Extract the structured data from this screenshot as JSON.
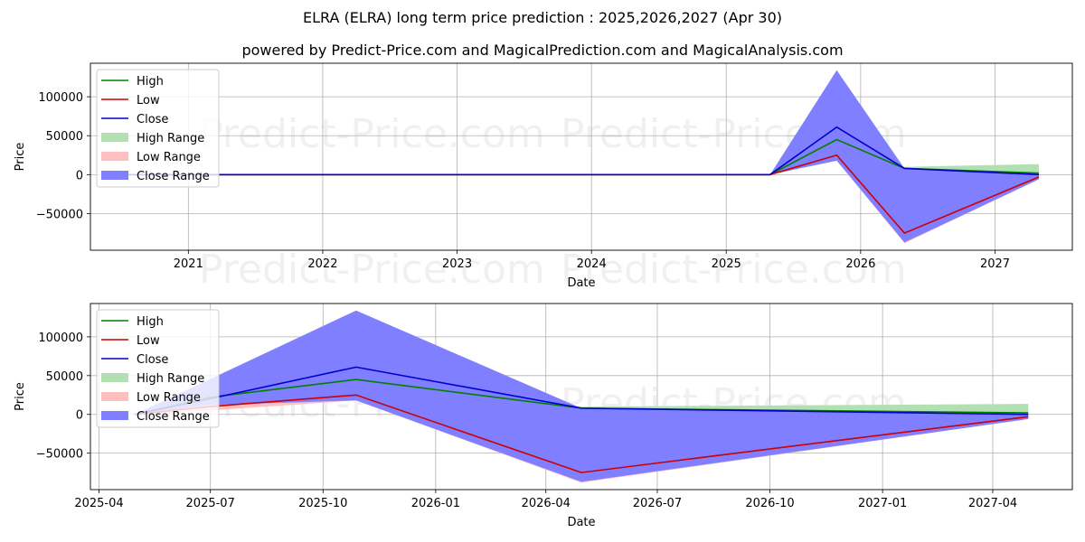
{
  "title": "ELRA (ELRA) long term price prediction : 2025,2026,2027 (Apr 30)",
  "subtitle": "powered by Predict-Price.com and MagicalPrediction.com and MagicalAnalysis.com",
  "watermark": "Predict-Price.com",
  "colors": {
    "high": "#008000",
    "low": "#cc0000",
    "close": "#0000cc",
    "high_range": "#b3e0b3",
    "low_range": "#ffbfbf",
    "close_range": "#7f7fff",
    "grid": "#b0b0b0"
  },
  "chart_data": [
    {
      "type": "area",
      "xlabel": "Date",
      "ylabel": "Price",
      "x_axis": "date",
      "xlim": [
        "2020-04-10",
        "2027-07-30"
      ],
      "ylim": [
        -97000,
        143000
      ],
      "x_ticks": [
        {
          "date": "2021-01-01",
          "label": "2021"
        },
        {
          "date": "2022-01-01",
          "label": "2022"
        },
        {
          "date": "2023-01-01",
          "label": "2023"
        },
        {
          "date": "2024-01-01",
          "label": "2024"
        },
        {
          "date": "2025-01-01",
          "label": "2025"
        },
        {
          "date": "2026-01-01",
          "label": "2026"
        },
        {
          "date": "2027-01-01",
          "label": "2027"
        }
      ],
      "y_ticks": [
        {
          "value": 100000,
          "label": "100000"
        },
        {
          "value": 50000,
          "label": "50000"
        },
        {
          "value": 0,
          "label": "0"
        },
        {
          "value": -50000,
          "label": "−50000"
        }
      ],
      "legend_position": "top-left",
      "grid": true,
      "series": [
        {
          "name": "High",
          "kind": "line",
          "color_key": "high",
          "points": [
            [
              "2020-06-01",
              0
            ],
            [
              "2025-04-30",
              0
            ],
            [
              "2025-10-28",
              45000
            ],
            [
              "2026-04-30",
              8000
            ],
            [
              "2027-04-30",
              2000
            ]
          ]
        },
        {
          "name": "Low",
          "kind": "line",
          "color_key": "low",
          "points": [
            [
              "2020-06-01",
              0
            ],
            [
              "2025-04-30",
              0
            ],
            [
              "2025-10-28",
              25000
            ],
            [
              "2026-04-30",
              -75000
            ],
            [
              "2027-04-30",
              -3000
            ]
          ]
        },
        {
          "name": "Close",
          "kind": "line",
          "color_key": "close",
          "points": [
            [
              "2020-06-01",
              0
            ],
            [
              "2025-04-30",
              0
            ],
            [
              "2025-10-28",
              61000
            ],
            [
              "2026-04-30",
              8000
            ],
            [
              "2027-04-30",
              0
            ]
          ]
        },
        {
          "name": "High Range",
          "kind": "band",
          "color_key": "high_range",
          "upper": [
            [
              "2020-06-01",
              0
            ],
            [
              "2025-04-30",
              0
            ],
            [
              "2025-10-28",
              50000
            ],
            [
              "2026-04-30",
              10000
            ],
            [
              "2027-04-30",
              13500
            ]
          ],
          "lower": [
            [
              "2020-06-01",
              0
            ],
            [
              "2025-04-30",
              0
            ],
            [
              "2025-10-28",
              40000
            ],
            [
              "2026-04-30",
              4000
            ],
            [
              "2027-04-30",
              0
            ]
          ]
        },
        {
          "name": "Low Range",
          "kind": "band",
          "color_key": "low_range",
          "upper": [
            [
              "2020-06-01",
              0
            ],
            [
              "2025-04-30",
              0
            ],
            [
              "2025-10-28",
              40000
            ],
            [
              "2026-04-30",
              -70000
            ],
            [
              "2027-04-30",
              -1000
            ]
          ],
          "lower": [
            [
              "2020-06-01",
              0
            ],
            [
              "2025-04-30",
              0
            ],
            [
              "2025-10-28",
              18000
            ],
            [
              "2026-04-30",
              -88000
            ],
            [
              "2027-04-30",
              -6000
            ]
          ]
        },
        {
          "name": "Close Range",
          "kind": "band",
          "color_key": "close_range",
          "upper": [
            [
              "2020-06-01",
              0
            ],
            [
              "2025-04-30",
              0
            ],
            [
              "2025-10-28",
              134000
            ],
            [
              "2026-04-30",
              8000
            ],
            [
              "2027-04-30",
              0
            ]
          ],
          "lower": [
            [
              "2020-06-01",
              0
            ],
            [
              "2025-04-30",
              0
            ],
            [
              "2025-10-28",
              18000
            ],
            [
              "2026-04-30",
              -87000
            ],
            [
              "2027-04-30",
              -6000
            ]
          ]
        }
      ]
    },
    {
      "type": "area",
      "xlabel": "Date",
      "ylabel": "Price",
      "x_axis": "date",
      "xlim": [
        "2025-03-25",
        "2027-06-05"
      ],
      "ylim": [
        -97000,
        143000
      ],
      "x_ticks": [
        {
          "date": "2025-04-01",
          "label": "2025-04"
        },
        {
          "date": "2025-07-01",
          "label": "2025-07"
        },
        {
          "date": "2025-10-01",
          "label": "2025-10"
        },
        {
          "date": "2026-01-01",
          "label": "2026-01"
        },
        {
          "date": "2026-04-01",
          "label": "2026-04"
        },
        {
          "date": "2026-07-01",
          "label": "2026-07"
        },
        {
          "date": "2026-10-01",
          "label": "2026-10"
        },
        {
          "date": "2027-01-01",
          "label": "2027-01"
        },
        {
          "date": "2027-04-01",
          "label": "2027-04"
        }
      ],
      "y_ticks": [
        {
          "value": 100000,
          "label": "100000"
        },
        {
          "value": 50000,
          "label": "50000"
        },
        {
          "value": 0,
          "label": "0"
        },
        {
          "value": -50000,
          "label": "−50000"
        }
      ],
      "legend_position": "top-left",
      "grid": true,
      "series": [
        {
          "name": "High",
          "kind": "line",
          "color_key": "high",
          "points": [
            [
              "2025-04-30",
              0
            ],
            [
              "2025-06-30",
              22000
            ],
            [
              "2025-10-28",
              45000
            ],
            [
              "2026-04-30",
              8000
            ],
            [
              "2027-04-30",
              2000
            ]
          ]
        },
        {
          "name": "Low",
          "kind": "line",
          "color_key": "low",
          "points": [
            [
              "2025-04-30",
              0
            ],
            [
              "2025-06-30",
              10000
            ],
            [
              "2025-10-28",
              25000
            ],
            [
              "2026-04-30",
              -75000
            ],
            [
              "2027-04-30",
              -3000
            ]
          ]
        },
        {
          "name": "Close",
          "kind": "line",
          "color_key": "close",
          "points": [
            [
              "2025-04-30",
              0
            ],
            [
              "2025-06-30",
              20000
            ],
            [
              "2025-10-28",
              61000
            ],
            [
              "2026-04-30",
              8000
            ],
            [
              "2027-04-30",
              0
            ]
          ]
        },
        {
          "name": "High Range",
          "kind": "band",
          "color_key": "high_range",
          "upper": [
            [
              "2025-04-30",
              0
            ],
            [
              "2025-06-30",
              25000
            ],
            [
              "2025-10-28",
              50000
            ],
            [
              "2026-04-30",
              10000
            ],
            [
              "2027-04-30",
              13500
            ]
          ],
          "lower": [
            [
              "2025-04-30",
              0
            ],
            [
              "2025-06-30",
              15000
            ],
            [
              "2025-10-28",
              40000
            ],
            [
              "2026-04-30",
              4000
            ],
            [
              "2027-04-30",
              0
            ]
          ]
        },
        {
          "name": "Low Range",
          "kind": "band",
          "color_key": "low_range",
          "upper": [
            [
              "2025-04-30",
              0
            ],
            [
              "2025-06-30",
              15000
            ],
            [
              "2025-10-28",
              40000
            ],
            [
              "2026-04-30",
              -70000
            ],
            [
              "2027-04-30",
              -1000
            ]
          ],
          "lower": [
            [
              "2025-04-30",
              0
            ],
            [
              "2025-06-30",
              5000
            ],
            [
              "2025-10-28",
              18000
            ],
            [
              "2026-04-30",
              -88000
            ],
            [
              "2027-04-30",
              -6000
            ]
          ]
        },
        {
          "name": "Close Range",
          "kind": "band",
          "color_key": "close_range",
          "upper": [
            [
              "2025-04-30",
              0
            ],
            [
              "2025-06-30",
              45000
            ],
            [
              "2025-10-28",
              134000
            ],
            [
              "2026-04-30",
              8000
            ],
            [
              "2027-04-30",
              0
            ]
          ],
          "lower": [
            [
              "2025-04-30",
              0
            ],
            [
              "2025-06-30",
              12000
            ],
            [
              "2025-10-28",
              18000
            ],
            [
              "2026-04-30",
              -87000
            ],
            [
              "2027-04-30",
              -6000
            ]
          ]
        }
      ]
    }
  ]
}
